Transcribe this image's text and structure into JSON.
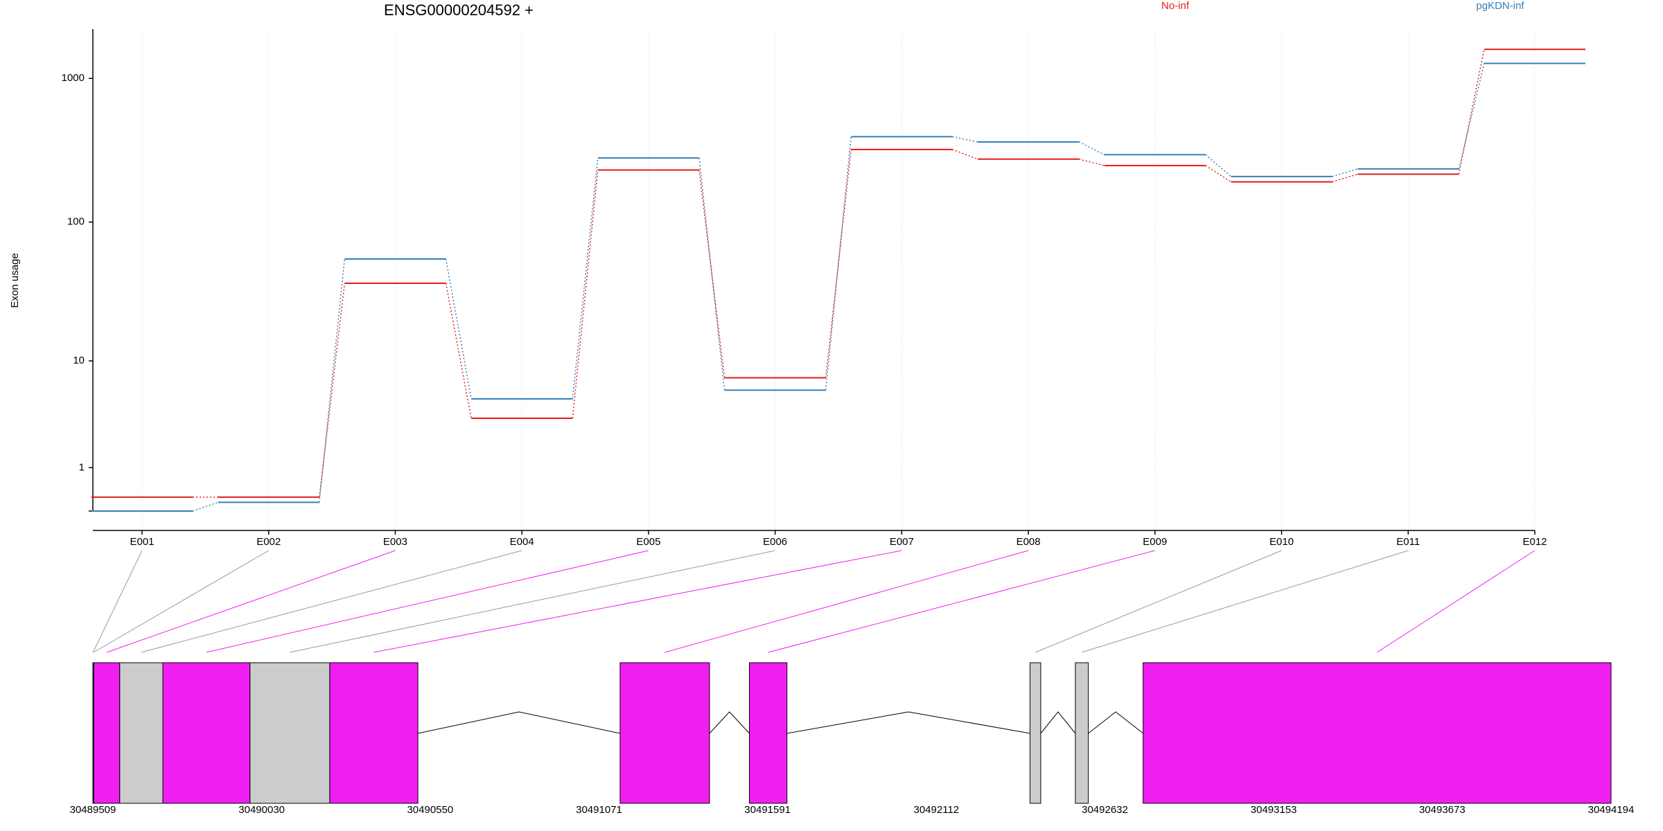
{
  "chart_data": {
    "type": "line",
    "title": "ENSG00000204592 +",
    "y_label": "Exon usage",
    "yscale": "log10(x+1)",
    "categories": [
      "E001",
      "E002",
      "E003",
      "E004",
      "E005",
      "E006",
      "E007",
      "E008",
      "E009",
      "E010",
      "E011",
      "E012"
    ],
    "series": [
      {
        "name": "No-inf",
        "color": "#e41a1c",
        "values": [
          0.25,
          0.25,
          37,
          3.4,
          231,
          7.4,
          321,
          275,
          248,
          191,
          216,
          1592
        ]
      },
      {
        "name": "pgKDN-inf",
        "color": "#377eb8",
        "values": [
          0,
          0.15,
          55,
          5,
          280,
          5.9,
          394,
          362,
          295,
          208,
          235,
          1273
        ]
      }
    ],
    "ylim": [
      0,
      2200
    ],
    "yticks": [
      1,
      10,
      100,
      1000
    ],
    "grid": true,
    "gene_model": {
      "xlim": [
        30489509,
        30494194
      ],
      "xticks": [
        30489509,
        30490030,
        30490550,
        30491071,
        30491591,
        30492112,
        30492632,
        30493153,
        30493673,
        30494194
      ],
      "highlight_color": "#f01ef0",
      "exon_color": "#cccccc",
      "exons": [
        {
          "start": 30489509,
          "end": 30489510,
          "highlighted": false
        },
        {
          "start": 30489510,
          "end": 30489512,
          "highlighted": false
        },
        {
          "start": 30489512,
          "end": 30489592,
          "highlighted": true
        },
        {
          "start": 30489592,
          "end": 30489725,
          "highlighted": false
        },
        {
          "start": 30489725,
          "end": 30489994,
          "highlighted": true
        },
        {
          "start": 30489994,
          "end": 30490240,
          "highlighted": false
        },
        {
          "start": 30490240,
          "end": 30490512,
          "highlighted": true
        },
        {
          "start": 30491136,
          "end": 30491412,
          "highlighted": true
        },
        {
          "start": 30491535,
          "end": 30491651,
          "highlighted": true
        },
        {
          "start": 30492401,
          "end": 30492434,
          "highlighted": false
        },
        {
          "start": 30492541,
          "end": 30492581,
          "highlighted": false
        },
        {
          "start": 30492750,
          "end": 30494194,
          "highlighted": true
        }
      ]
    }
  }
}
